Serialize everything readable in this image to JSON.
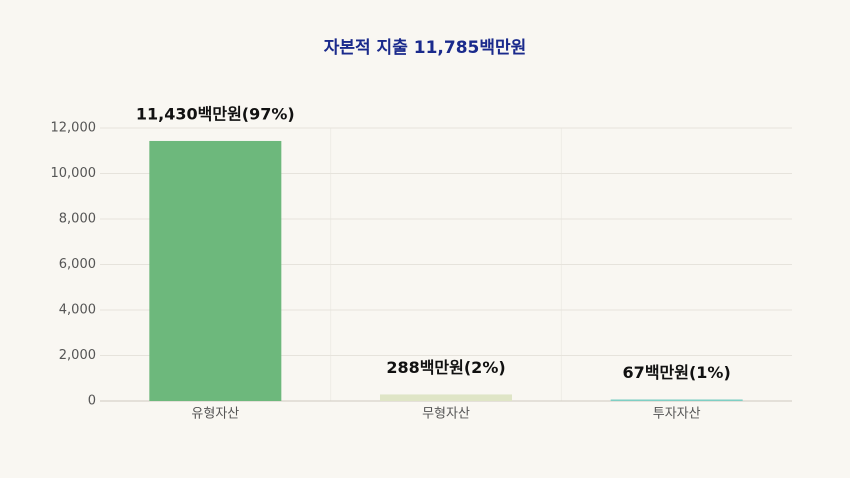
{
  "chart_data": {
    "type": "bar",
    "title": "자본적 지출 11,785백만원",
    "categories": [
      "유형자산",
      "무형자산",
      "투자자산"
    ],
    "values": [
      11430,
      288,
      67
    ],
    "value_labels": [
      "11,430백만원(97%)",
      "288백만원(2%)",
      "67백만원(1%)"
    ],
    "colors": [
      "#6db87c",
      "#dfe5c6",
      "#7fcfc4"
    ],
    "ylim": [
      0,
      12000
    ],
    "yticks": [
      0,
      {
        "value": 2000,
        "label": "2,000"
      },
      {
        "value": 4000,
        "label": "4,000"
      },
      {
        "value": 6000,
        "label": "6,000"
      },
      {
        "value": 8000,
        "label": "8,000"
      },
      {
        "value": 10000,
        "label": "10,000"
      },
      {
        "value": 12000,
        "label": "12,000"
      }
    ],
    "grid": true
  }
}
